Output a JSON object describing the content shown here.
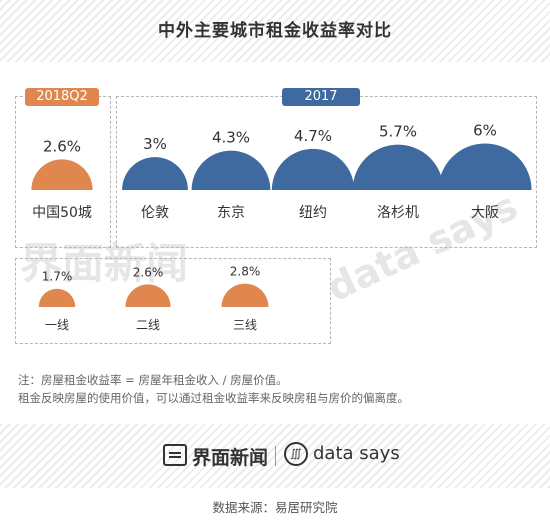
{
  "header": {
    "title": "中外主要城市租金收益率对比"
  },
  "legend": {
    "left_tag": "2018Q2",
    "right_tag": "2017"
  },
  "colors": {
    "orange": "#e0864f",
    "blue": "#3e6aa0",
    "tag_orange": "#e0864f",
    "tag_blue": "#3e6aa0"
  },
  "chart_data": [
    {
      "type": "semicircle",
      "group": "2018Q2",
      "categories": [
        "中国50城"
      ],
      "values": [
        2.6
      ],
      "labels": [
        "2.6%"
      ],
      "color": "#e0864f"
    },
    {
      "type": "semicircle",
      "group": "2017",
      "categories": [
        "伦敦",
        "东京",
        "纽约",
        "洛杉机",
        "大阪"
      ],
      "values": [
        3,
        4.3,
        4.7,
        5.7,
        6
      ],
      "labels": [
        "3%",
        "4.3%",
        "4.7%",
        "5.7%",
        "6%"
      ],
      "color": "#3e6aa0"
    },
    {
      "type": "semicircle",
      "group": "2018Q2",
      "categories": [
        "一线",
        "二线",
        "三线"
      ],
      "values": [
        1.7,
        2.6,
        2.8
      ],
      "labels": [
        "1.7%",
        "2.6%",
        "2.8%"
      ],
      "color": "#e0864f"
    }
  ],
  "notes": {
    "line1": "注：房屋租金收益率 = 房屋年租金收入 / 房屋价值。",
    "line2": "租金反映房屋的使用价值，可以通过租金收益率来反映房租与房价的偏离度。"
  },
  "footer": {
    "brand1": "界面新闻",
    "brand2": "data says",
    "source": "数据来源：易居研究院"
  },
  "watermark": {
    "text1": "界面新闻",
    "text2": "data says"
  },
  "icons": {
    "brand1_icon": "jiemian-logo-icon",
    "brand2_icon": "datasays-logo-icon"
  }
}
